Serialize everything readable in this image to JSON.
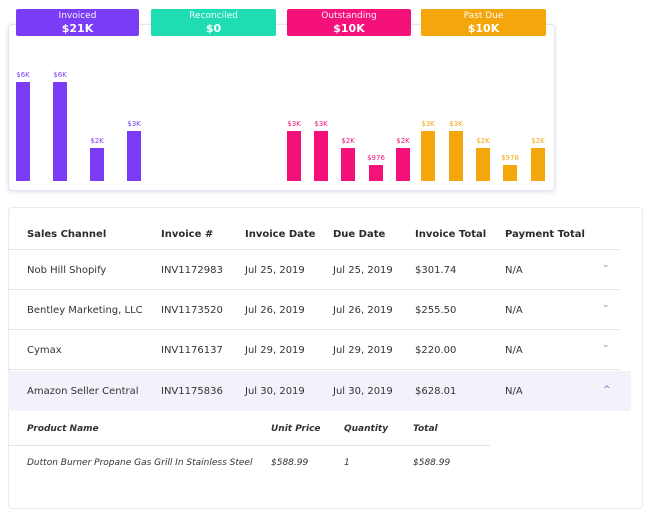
{
  "summary": {
    "pills": [
      {
        "label": "Invoiced",
        "value": "$21K",
        "color": "#7a3cf5"
      },
      {
        "label": "Reconciled",
        "value": "$0",
        "color": "#1fdcb2"
      },
      {
        "label": "Outstanding",
        "value": "$10K",
        "color": "#f4117a"
      },
      {
        "label": "Past Due",
        "value": "$10K",
        "color": "#f3a70d"
      }
    ],
    "bars": [
      {
        "label": "$6K",
        "value": 6,
        "group": 0
      },
      {
        "label": "$6K",
        "value": 6,
        "group": 0
      },
      {
        "label": "$2K",
        "value": 2,
        "group": 0
      },
      {
        "label": "$3K",
        "value": 3,
        "group": 0
      },
      {
        "label": "$3K",
        "value": 3,
        "group": 2
      },
      {
        "label": "$3K",
        "value": 3,
        "group": 2
      },
      {
        "label": "$2K",
        "value": 2,
        "group": 2
      },
      {
        "label": "$976",
        "value": 0.976,
        "group": 2
      },
      {
        "label": "$2K",
        "value": 2,
        "group": 2
      },
      {
        "label": "$3K",
        "value": 3,
        "group": 3
      },
      {
        "label": "$3K",
        "value": 3,
        "group": 3
      },
      {
        "label": "$2K",
        "value": 2,
        "group": 3
      },
      {
        "label": "$976",
        "value": 0.976,
        "group": 3
      },
      {
        "label": "$2K",
        "value": 2,
        "group": 3
      }
    ]
  },
  "table": {
    "headers": [
      "Sales Channel",
      "Invoice #",
      "Invoice Date",
      "Due Date",
      "Invoice Total",
      "Payment Total"
    ],
    "rows": [
      [
        "Nob Hill Shopify",
        "INV1172983",
        "Jul 25, 2019",
        "Jul 25, 2019",
        "$301.74",
        "N/A"
      ],
      [
        "Bentley Marketing, LLC",
        "INV1173520",
        "Jul 26, 2019",
        "Jul 26, 2019",
        "$255.50",
        "N/A"
      ],
      [
        "Cymax",
        "INV1176137",
        "Jul 29, 2019",
        "Jul 29, 2019",
        "$220.00",
        "N/A"
      ],
      [
        "Amazon Seller Central",
        "INV1175836",
        "Jul 30, 2019",
        "Jul 30, 2019",
        "$628.01",
        "N/A"
      ]
    ],
    "chevron_down": "⌄",
    "chevron_up": "^"
  },
  "detail": {
    "headers": [
      "Product Name",
      "Unit Price",
      "Quantity",
      "Total"
    ],
    "rows": [
      [
        "Dutton Burner Propane Gas Grill In Stainless Steel",
        "$588.99",
        "1",
        "$588.99"
      ]
    ]
  }
}
